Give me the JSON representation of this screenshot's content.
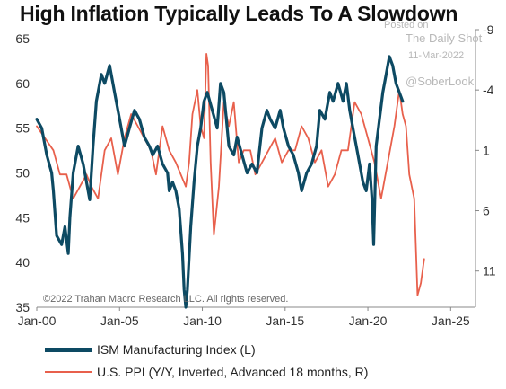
{
  "title": "High Inflation Typically Leads To A Slowdown",
  "watermark": {
    "posted_on": "Posted on",
    "source": "The Daily Shot",
    "date": "11-Mar-2022",
    "handle": "@SoberLook"
  },
  "copyright": "©2022 Trahan Macro Research LLC. All rights reserved.",
  "colors": {
    "ism": "#0d4a63",
    "ppi": "#e8604c"
  },
  "chart_data": {
    "type": "line",
    "x_ticks": [
      "Jan-00",
      "Jan-05",
      "Jan-10",
      "Jan-15",
      "Jan-20",
      "Jan-25"
    ],
    "xlim": [
      2000,
      2026.5
    ],
    "y_left": {
      "ylim": [
        35,
        66
      ],
      "ticks": [
        "35",
        "40",
        "45",
        "50",
        "55",
        "60",
        "65"
      ]
    },
    "y_right": {
      "ylim": [
        -9,
        14
      ],
      "inverted": true,
      "ticks": [
        "-9",
        "-4",
        "1",
        "6",
        "11"
      ]
    },
    "grid": false,
    "legend_position": "bottom",
    "series": [
      {
        "name": "ISM Manufacturing Index (L)",
        "axis": "left",
        "x": [
          2000.0,
          2000.3,
          2000.6,
          2000.9,
          2001.0,
          2001.2,
          2001.5,
          2001.7,
          2001.9,
          2002.0,
          2002.2,
          2002.5,
          2002.8,
          2003.0,
          2003.2,
          2003.4,
          2003.6,
          2003.9,
          2004.1,
          2004.4,
          2004.7,
          2005.0,
          2005.3,
          2005.6,
          2005.9,
          2006.2,
          2006.5,
          2006.8,
          2007.0,
          2007.3,
          2007.6,
          2007.9,
          2008.0,
          2008.2,
          2008.4,
          2008.6,
          2008.8,
          2008.9,
          2009.0,
          2009.1,
          2009.3,
          2009.5,
          2009.7,
          2009.9,
          2010.1,
          2010.3,
          2010.6,
          2010.9,
          2011.1,
          2011.3,
          2011.6,
          2011.9,
          2012.1,
          2012.4,
          2012.7,
          2013.0,
          2013.3,
          2013.6,
          2013.9,
          2014.1,
          2014.4,
          2014.7,
          2014.9,
          2015.2,
          2015.5,
          2015.8,
          2016.0,
          2016.3,
          2016.6,
          2016.9,
          2017.1,
          2017.4,
          2017.7,
          2017.9,
          2018.2,
          2018.5,
          2018.7,
          2018.9,
          2019.1,
          2019.4,
          2019.7,
          2019.9,
          2020.1,
          2020.25,
          2020.35,
          2020.5,
          2020.7,
          2020.9,
          2021.1,
          2021.3,
          2021.5,
          2021.7,
          2021.9,
          2022.1
        ],
        "values": [
          56,
          55,
          52,
          50,
          48,
          43,
          42,
          44,
          41,
          45,
          50,
          53,
          51,
          49,
          47,
          53,
          58,
          61,
          60,
          62,
          59,
          56,
          53,
          55,
          57,
          56,
          54,
          53,
          52,
          53,
          51,
          50,
          48,
          49,
          48,
          46,
          41,
          37,
          35,
          37,
          44,
          49,
          53,
          55,
          58,
          59,
          57,
          55,
          60,
          59,
          53,
          52,
          54,
          52,
          50,
          51,
          50,
          55,
          57,
          56,
          55,
          57,
          55,
          53,
          52,
          50,
          48,
          50,
          51,
          53,
          57,
          56,
          59,
          58,
          60,
          58,
          60,
          57,
          55,
          52,
          49,
          48,
          51,
          47,
          42,
          53,
          56,
          59,
          61,
          63,
          62,
          60,
          59,
          58
        ]
      },
      {
        "name": "U.S. PPI (Y/Y, Inverted, Advanced 18 months, R)",
        "axis": "right",
        "x": [
          2000.0,
          2000.5,
          2001.0,
          2001.4,
          2001.8,
          2002.2,
          2002.6,
          2003.0,
          2003.3,
          2003.7,
          2004.1,
          2004.5,
          2004.9,
          2005.3,
          2005.7,
          2006.1,
          2006.5,
          2006.9,
          2007.2,
          2007.6,
          2008.0,
          2008.4,
          2008.7,
          2009.0,
          2009.2,
          2009.4,
          2009.7,
          2009.9,
          2010.1,
          2010.25,
          2010.35,
          2010.5,
          2010.7,
          2011.0,
          2011.3,
          2011.6,
          2011.9,
          2012.2,
          2012.5,
          2012.9,
          2013.2,
          2013.6,
          2014.0,
          2014.4,
          2014.8,
          2015.2,
          2015.6,
          2016.0,
          2016.4,
          2016.8,
          2017.2,
          2017.6,
          2018.0,
          2018.4,
          2018.8,
          2019.2,
          2019.6,
          2020.0,
          2020.4,
          2020.8,
          2021.2,
          2021.6,
          2021.9,
          2022.1,
          2022.3,
          2022.5,
          2022.8,
          2023.0,
          2023.2,
          2023.4
        ],
        "values": [
          -1,
          0,
          1,
          3,
          3,
          5,
          4,
          3,
          4,
          5,
          1,
          0,
          3,
          0,
          -2,
          -1,
          0,
          1,
          3,
          -1,
          1,
          2,
          3,
          4,
          2,
          -2,
          -4,
          -1,
          0,
          -7,
          -6,
          2,
          8,
          4,
          -3,
          -1,
          -3,
          2,
          1,
          1,
          3,
          2,
          1,
          0,
          2,
          1,
          1,
          -1,
          0,
          2,
          1,
          4,
          3,
          1,
          1,
          -3,
          -2,
          0,
          2,
          5,
          2,
          -1,
          -4,
          -2,
          -1,
          3,
          5,
          13,
          12,
          10
        ]
      }
    ]
  },
  "legend": [
    {
      "label": "ISM Manufacturing Index (L)"
    },
    {
      "label": "U.S. PPI (Y/Y, Inverted, Advanced 18 months, R)"
    }
  ]
}
